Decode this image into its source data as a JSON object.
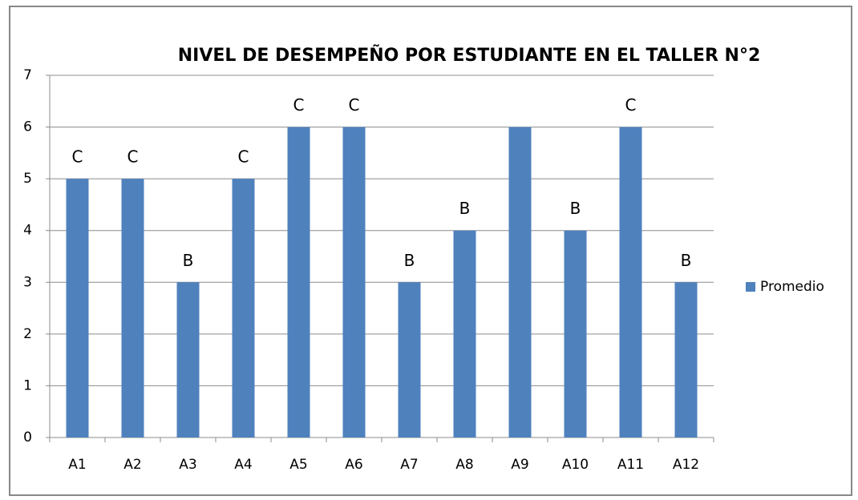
{
  "chart_data": {
    "type": "bar",
    "title": "NIVEL DE DESEMPEÑO POR ESTUDIANTE EN EL TALLER N°2",
    "categories": [
      "A1",
      "A2",
      "A3",
      "A4",
      "A5",
      "A6",
      "A7",
      "A8",
      "A9",
      "A10",
      "A11",
      "A12"
    ],
    "series": [
      {
        "name": "Promedio",
        "color": "#4f81bd",
        "values": [
          5,
          5,
          3,
          5,
          6,
          6,
          3,
          4,
          6,
          4,
          6,
          3
        ]
      }
    ],
    "annotations": [
      "C",
      "C",
      "B",
      "C",
      "C",
      "C",
      "B",
      "B",
      null,
      "B",
      "C",
      "B"
    ],
    "ylim": [
      0,
      7
    ],
    "yticks": [
      0,
      1,
      2,
      3,
      4,
      5,
      6,
      7
    ],
    "grid": true,
    "legend": "right"
  }
}
